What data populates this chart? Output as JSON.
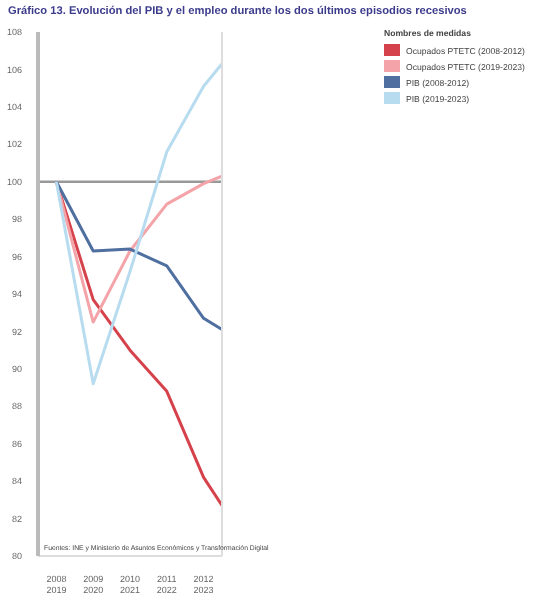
{
  "chart_data": {
    "type": "line",
    "title": "Gráfico 13. Evolución del PIB y el empleo durante los dos últimos episodios recesivos",
    "legend_title": "Nombres de medidas",
    "categories": [
      "2008\n2019",
      null,
      "2009\n2020",
      null,
      "2010\n2021",
      null,
      "2011\n2022",
      null,
      "2012\n2023",
      null
    ],
    "series": [
      {
        "name": "Ocupados PTETC (2008-2012)",
        "color": "#d6424b",
        "values": [
          100,
          null,
          93.7,
          null,
          91.0,
          null,
          88.8,
          null,
          84.2,
          82.7
        ]
      },
      {
        "name": "Ocupados PTETC (2019-2023)",
        "color": "#f4a3a8",
        "values": [
          100,
          null,
          92.5,
          null,
          96.3,
          null,
          98.8,
          null,
          99.9,
          100.3
        ]
      },
      {
        "name": "PIB (2008-2012)",
        "color": "#4e6fa0",
        "values": [
          100,
          null,
          96.3,
          null,
          96.4,
          null,
          95.5,
          null,
          92.7,
          92.1
        ]
      },
      {
        "name": "PIB (2019-2023)",
        "color": "#b8dcef",
        "values": [
          100,
          null,
          89.2,
          null,
          95.2,
          null,
          101.6,
          null,
          105.1,
          106.3
        ]
      }
    ],
    "ylim": [
      80,
      108
    ],
    "yticks": [
      80,
      82,
      84,
      86,
      88,
      90,
      92,
      94,
      96,
      98,
      100,
      102,
      104,
      106,
      108
    ],
    "ref_lines": [
      {
        "axis": "y",
        "value": 100,
        "color": "#999999"
      }
    ],
    "annotations": [
      "Fuentes: INE y Ministerio de Asuntos Económicos y Transformación Digital"
    ],
    "legend": "right",
    "grid": false,
    "marker": "none",
    "line_style": "solid"
  }
}
